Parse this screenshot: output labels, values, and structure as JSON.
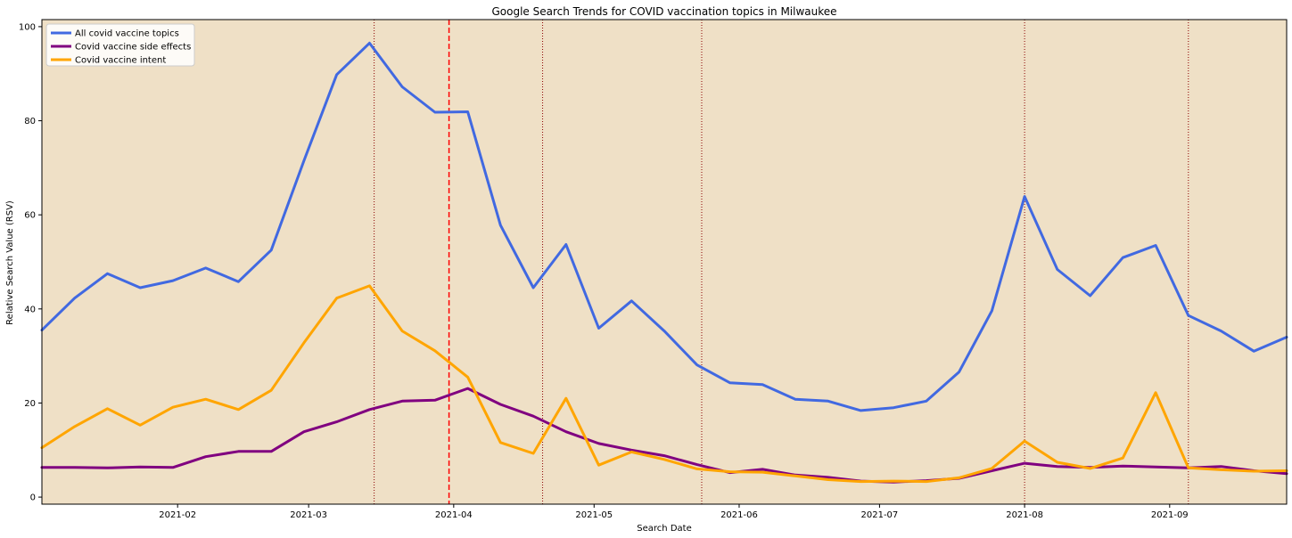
{
  "chart_data": {
    "type": "line",
    "title": "Google Search Trends for COVID vaccination topics in Milwaukee",
    "xlabel": "Search Date",
    "ylabel": "Relative Search Value (RSV)",
    "x_start": "2021-01-03",
    "x_step_days": 7,
    "xlim": [
      "2021-01-03",
      "2021-09-26"
    ],
    "ylim": [
      -1.5,
      101.5
    ],
    "x_ticks": [
      "2021-02",
      "2021-03",
      "2021-04",
      "2021-05",
      "2021-06",
      "2021-07",
      "2021-08",
      "2021-09"
    ],
    "y_ticks": [
      0,
      20,
      40,
      60,
      80,
      100
    ],
    "background_color": "#efe0c6",
    "grid": false,
    "legend_position": "upper-left",
    "series": [
      {
        "name": "All covid vaccine topics",
        "color": "#4169e1",
        "values": [
          35.5,
          42.3,
          47.5,
          44.5,
          46,
          48.7,
          45.8,
          52.5,
          71.5,
          89.8,
          96.5,
          87.2,
          81.8,
          81.9,
          57.8,
          44.5,
          53.7,
          35.9,
          41.7,
          35.3,
          28.1,
          24.3,
          23.9,
          20.8,
          20.4,
          18.4,
          19,
          20.4,
          26.6,
          39.6,
          63.9,
          48.4,
          42.8,
          50.9,
          53.5,
          38.6,
          35.3,
          31,
          34
        ]
      },
      {
        "name": "Covid vaccine side effects",
        "color": "#800080",
        "values": [
          6.3,
          6.3,
          6.2,
          6.4,
          6.3,
          8.6,
          9.7,
          9.7,
          13.9,
          16,
          18.6,
          20.4,
          20.6,
          23.1,
          19.7,
          17.2,
          13.9,
          11.4,
          10,
          8.8,
          6.9,
          5.2,
          5.9,
          4.7,
          4.2,
          3.4,
          3.2,
          3.5,
          4,
          5.6,
          7.2,
          6.5,
          6.3,
          6.6,
          6.4,
          6.2,
          6.5,
          5.6,
          5
        ]
      },
      {
        "name": "Covid vaccine intent",
        "color": "#ffa500",
        "values": [
          10.5,
          15,
          18.8,
          15.3,
          19.1,
          20.8,
          18.6,
          22.7,
          32.8,
          42.3,
          44.9,
          35.3,
          31.1,
          25.5,
          11.6,
          9.3,
          21,
          6.8,
          9.6,
          8,
          6,
          5.4,
          5.3,
          4.5,
          3.7,
          3.3,
          3.4,
          3.3,
          4.1,
          6.1,
          11.9,
          7.4,
          6.1,
          8.3,
          22.2,
          6.2,
          5.8,
          5.5,
          5.6
        ]
      }
    ],
    "vertical_lines": [
      {
        "x": "2021-03-15",
        "color": "#8b0000",
        "style": "dotted"
      },
      {
        "x": "2021-03-31",
        "color": "#ff0000",
        "style": "dashed"
      },
      {
        "x": "2021-04-20",
        "color": "#8b0000",
        "style": "dotted"
      },
      {
        "x": "2021-05-24",
        "color": "#8b0000",
        "style": "dotted"
      },
      {
        "x": "2021-08-01",
        "color": "#8b0000",
        "style": "dotted"
      },
      {
        "x": "2021-09-05",
        "color": "#8b0000",
        "style": "dotted"
      }
    ]
  }
}
